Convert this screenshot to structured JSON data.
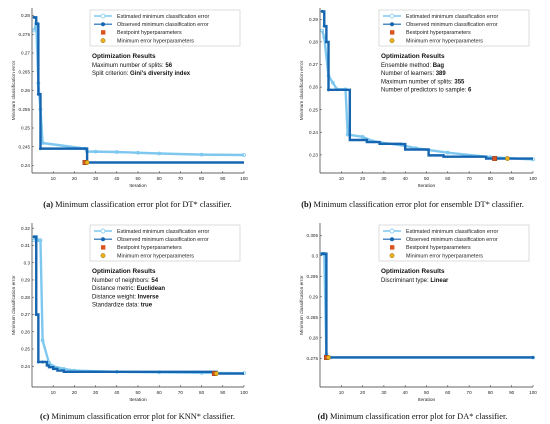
{
  "chart_data": [
    {
      "type": "line",
      "ylabel": "Minimum classification error",
      "xlabel": "Iteration",
      "xlim": [
        0,
        100
      ],
      "ylim": [
        0.238,
        0.282
      ],
      "xticks": [
        10,
        20,
        30,
        40,
        50,
        60,
        70,
        80,
        90,
        100
      ],
      "yticks": [
        0.24,
        0.245,
        0.25,
        0.255,
        0.26,
        0.265,
        0.27,
        0.275,
        0.28
      ],
      "ytick_labels": [
        "0.24",
        "0.245",
        "0.25",
        "0.255",
        "0.26",
        "0.265",
        "0.27",
        "0.275",
        "0.28"
      ],
      "legend_position": "top-right",
      "legend": [
        "Estimated minimum classification error",
        "Observed minimum classification error",
        "Bestpoint hyperparameters",
        "Minimum error hyperparameters"
      ],
      "series": [
        {
          "name": "Estimated minimum classification error",
          "x": [
            1,
            2,
            3,
            4,
            5,
            25,
            26,
            30,
            40,
            50,
            60,
            80,
            100
          ],
          "values": [
            0.276,
            0.278,
            0.262,
            0.255,
            0.246,
            0.2445,
            0.2437,
            0.2437,
            0.2436,
            0.2434,
            0.2432,
            0.2429,
            0.2428
          ]
        },
        {
          "name": "Observed minimum classification error",
          "x": [
            1,
            2,
            3,
            4,
            5,
            25,
            26,
            100
          ],
          "values": [
            0.2795,
            0.2778,
            0.259,
            0.2445,
            0.2445,
            0.2445,
            0.2408,
            0.2408
          ]
        },
        {
          "name": "Bestpoint hyperparameters",
          "x": [
            25
          ],
          "values": [
            0.2408
          ]
        },
        {
          "name": "Minimum error hyperparameters",
          "x": [
            26
          ],
          "values": [
            0.2408
          ]
        }
      ],
      "annotation": {
        "title": "Optimization Results",
        "lines": [
          {
            "label": "Maximum number of splits: ",
            "value": "56"
          },
          {
            "label": "Split criterion: ",
            "value": "Gini's diversity index"
          }
        ]
      }
    },
    {
      "type": "line",
      "ylabel": "Minimum classification error",
      "xlabel": "Iteration",
      "xlim": [
        0,
        100
      ],
      "ylim": [
        0.222,
        0.295
      ],
      "xticks": [
        10,
        20,
        30,
        40,
        50,
        60,
        70,
        80,
        90,
        100
      ],
      "yticks": [
        0.23,
        0.24,
        0.25,
        0.26,
        0.27,
        0.28,
        0.29
      ],
      "ytick_labels": [
        "0.23",
        "0.24",
        "0.25",
        "0.26",
        "0.27",
        "0.28",
        "0.29"
      ],
      "legend_position": "top-right",
      "legend": [
        "Estimated minimum classification error",
        "Observed minimum classification error",
        "Bestpoint hyperparameters",
        "Minimum error hyperparameters"
      ],
      "series": [
        {
          "name": "Estimated minimum classification error",
          "x": [
            1,
            2,
            4,
            6,
            8,
            12,
            13,
            20,
            25,
            40,
            45,
            60,
            80,
            100
          ],
          "values": [
            0.285,
            0.282,
            0.265,
            0.262,
            0.259,
            0.259,
            0.239,
            0.238,
            0.236,
            0.234,
            0.233,
            0.231,
            0.229,
            0.228
          ]
        },
        {
          "name": "Observed minimum classification error",
          "x": [
            1,
            2,
            3,
            4,
            5,
            13,
            14,
            22,
            28,
            38,
            40,
            51,
            58,
            78,
            100
          ],
          "values": [
            0.2935,
            0.287,
            0.28,
            0.2588,
            0.2588,
            0.2588,
            0.2366,
            0.2357,
            0.2349,
            0.2348,
            0.2324,
            0.2298,
            0.2292,
            0.2284,
            0.2284
          ]
        },
        {
          "name": "Bestpoint hyperparameters",
          "x": [
            82
          ],
          "values": [
            0.2284
          ]
        },
        {
          "name": "Minimum error hyperparameters",
          "x": [
            88
          ],
          "values": [
            0.2284
          ]
        }
      ],
      "annotation": {
        "title": "Optimization Results",
        "lines": [
          {
            "label": "Ensemble method: ",
            "value": "Bag"
          },
          {
            "label": "Number of learners: ",
            "value": "389"
          },
          {
            "label": "Maximum number of splits: ",
            "value": "355"
          },
          {
            "label": "Number of predictors to sample: ",
            "value": "6"
          }
        ]
      }
    },
    {
      "type": "line",
      "ylabel": "Minimum classification error",
      "xlabel": "Iteration",
      "xlim": [
        0,
        100
      ],
      "ylim": [
        0.228,
        0.323
      ],
      "xticks": [
        10,
        20,
        30,
        40,
        50,
        60,
        70,
        80,
        90,
        100
      ],
      "yticks": [
        0.24,
        0.25,
        0.26,
        0.27,
        0.28,
        0.29,
        0.3,
        0.31,
        0.32
      ],
      "ytick_labels": [
        "0.24",
        "0.25",
        "0.26",
        "0.27",
        "0.28",
        "0.29",
        "0.3",
        "0.31",
        "0.32"
      ],
      "legend_position": "top-right",
      "legend": [
        "Estimated minimum classification error",
        "Observed minimum classification error",
        "Bestpoint hyperparameters",
        "Minimum error hyperparameters"
      ],
      "series": [
        {
          "name": "Estimated minimum classification error",
          "x": [
            1,
            2,
            3,
            4,
            5,
            8,
            10,
            15,
            20,
            40,
            60,
            80,
            100
          ],
          "values": [
            0.313,
            0.315,
            0.313,
            0.313,
            0.255,
            0.242,
            0.24,
            0.2385,
            0.2375,
            0.2368,
            0.2365,
            0.2362,
            0.236
          ]
        },
        {
          "name": "Observed minimum classification error",
          "x": [
            1,
            2,
            3,
            5,
            7,
            8,
            10,
            12,
            15,
            86,
            87,
            100
          ],
          "values": [
            0.315,
            0.27,
            0.2425,
            0.2425,
            0.2405,
            0.2395,
            0.2385,
            0.2375,
            0.2368,
            0.2368,
            0.2358,
            0.2358
          ]
        },
        {
          "name": "Bestpoint hyperparameters",
          "x": [
            86
          ],
          "values": [
            0.2358
          ]
        },
        {
          "name": "Minimum error hyperparameters",
          "x": [
            87
          ],
          "values": [
            0.2358
          ]
        }
      ],
      "annotation": {
        "title": "Optimization Results",
        "lines": [
          {
            "label": "Number of neighbors: ",
            "value": "54"
          },
          {
            "label": "Distance metric: ",
            "value": "Euclidean"
          },
          {
            "label": "Distance weight: ",
            "value": "Inverse"
          },
          {
            "label": "Standardize data: ",
            "value": "true"
          }
        ]
      }
    },
    {
      "type": "line",
      "ylabel": "Minimum classification error",
      "xlabel": "Iteration",
      "xlim": [
        0,
        100
      ],
      "ylim": [
        0.268,
        0.308
      ],
      "xticks": [
        10,
        20,
        30,
        40,
        50,
        60,
        70,
        80,
        90,
        100
      ],
      "yticks": [
        0.275,
        0.28,
        0.285,
        0.29,
        0.295,
        0.3,
        0.305
      ],
      "ytick_labels": [
        "0.275",
        "0.28",
        "0.285",
        "0.29",
        "0.295",
        "0.3",
        "0.305"
      ],
      "legend_position": "top-right",
      "legend": [
        "Estimated minimum classification error",
        "Observed minimum classification error",
        "Bestpoint hyperparameters",
        "Minimum error hyperparameters"
      ],
      "series": [
        {
          "name": "Estimated minimum classification error",
          "x": [
            1,
            2,
            3,
            4,
            5,
            100
          ],
          "values": [
            0.3005,
            0.3005,
            0.276,
            0.2752,
            0.2752,
            0.2752
          ]
        },
        {
          "name": "Observed minimum classification error",
          "x": [
            1,
            2,
            3,
            100
          ],
          "values": [
            0.3005,
            0.3005,
            0.2752,
            0.2752
          ]
        },
        {
          "name": "Bestpoint hyperparameters",
          "x": [
            3
          ],
          "values": [
            0.2752
          ]
        },
        {
          "name": "Minimum error hyperparameters",
          "x": [
            4
          ],
          "values": [
            0.2752
          ]
        }
      ],
      "annotation": {
        "title": "Optimization Results",
        "lines": [
          {
            "label": "Discriminant type: ",
            "value": "Linear"
          }
        ]
      }
    }
  ],
  "captions": [
    {
      "tag": "(a)",
      "text": " Minimum classification error plot for DT* classifier."
    },
    {
      "tag": "(b)",
      "text": " Minimum classification error plot for ensemble DT* classifier."
    },
    {
      "tag": "(c)",
      "text": " Minimum classification error plot for KNN* classifier."
    },
    {
      "tag": "(d)",
      "text": " Minimum classification error plot for DA* classifier."
    }
  ],
  "colors": {
    "estimated": "#7ec8ef",
    "observed": "#1565b0",
    "bestpoint": "#d9541e",
    "minerror": "#edb120",
    "axis": "#333333",
    "legend_border": "#bbbbbb"
  }
}
